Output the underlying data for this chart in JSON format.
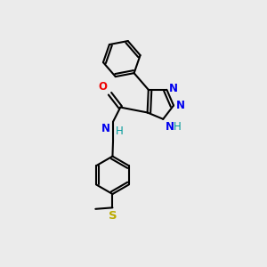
{
  "bg_color": "#ebebeb",
  "bond_color": "#000000",
  "bond_width": 1.5,
  "atom_colors": {
    "N": "#0000ee",
    "O": "#ee0000",
    "S": "#bbaa00",
    "H_teal": "#009999",
    "C": "#000000"
  },
  "font_size": 8.5,
  "font_size_small": 7.5
}
